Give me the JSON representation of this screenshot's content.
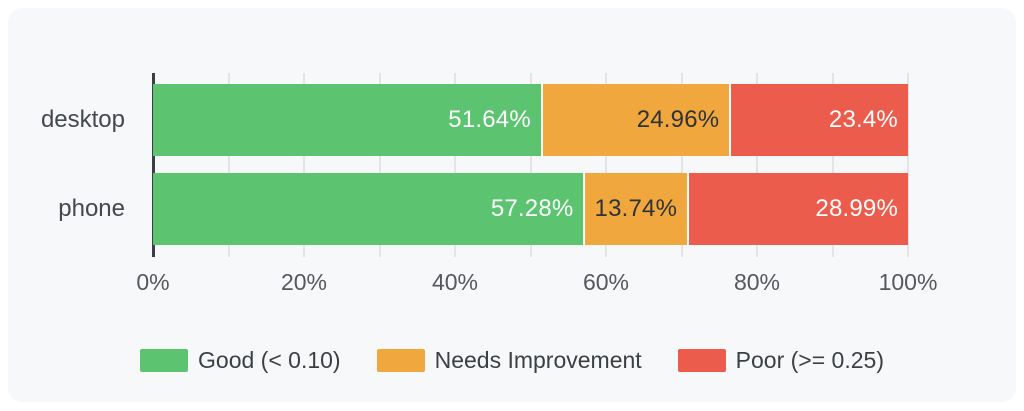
{
  "page": {
    "background": "#ffffff",
    "card_background": "#f7f8fa"
  },
  "chart_data": {
    "type": "bar",
    "orientation": "horizontal",
    "stacked": true,
    "categories": [
      "desktop",
      "phone"
    ],
    "series": [
      {
        "id": "good",
        "name": "Good (< 0.10)",
        "color": "#5cc470",
        "label_color": "#ffffff",
        "values": [
          51.64,
          57.28
        ],
        "labels": [
          "51.64%",
          "57.28%"
        ]
      },
      {
        "id": "needs-improvement",
        "name": "Needs Improvement",
        "color": "#f0a73d",
        "label_color": "#2f3237",
        "values": [
          24.96,
          13.74
        ],
        "labels": [
          "24.96%",
          "13.74%"
        ]
      },
      {
        "id": "poor",
        "name": "Poor (>= 0.25)",
        "color": "#ec5c4d",
        "label_color": "#ffffff",
        "values": [
          23.4,
          28.99
        ],
        "labels": [
          "23.4%",
          "28.99%"
        ]
      }
    ],
    "xlim": [
      0,
      100
    ],
    "gridline_step": 10,
    "x_ticks": [
      {
        "value": 0,
        "label": "0%"
      },
      {
        "value": 20,
        "label": "20%"
      },
      {
        "value": 40,
        "label": "40%"
      },
      {
        "value": 60,
        "label": "60%"
      },
      {
        "value": 80,
        "label": "80%"
      },
      {
        "value": 100,
        "label": "100%"
      }
    ],
    "grid": true,
    "legend_position": "bottom"
  },
  "style": {
    "gridline_color": "#e2e4e8",
    "axis_line_color": "#3b3e42",
    "category_label_color": "#45484c",
    "tick_label_color": "#55585c",
    "legend_text_color": "#3c4043",
    "segment_gap_color": "#fafbfd"
  }
}
